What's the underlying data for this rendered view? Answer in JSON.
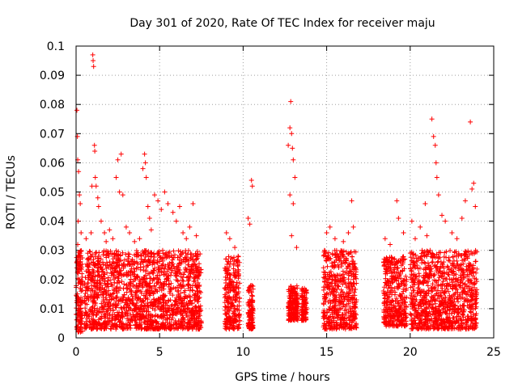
{
  "chart_data": {
    "type": "scatter",
    "title": "Day 301 of 2020, Rate Of TEC Index for receiver maju",
    "xlabel": "GPS time / hours",
    "ylabel": "ROTI / TECUs",
    "xlim": [
      0,
      25
    ],
    "ylim": [
      0,
      0.1
    ],
    "xticks": [
      0,
      5,
      10,
      15,
      20,
      25
    ],
    "xtick_labels": [
      "0",
      "5",
      "10",
      "15",
      "20",
      "25"
    ],
    "yticks": [
      0,
      0.01,
      0.02,
      0.03,
      0.04,
      0.05,
      0.06,
      0.07,
      0.08,
      0.09,
      0.1
    ],
    "ytick_labels": [
      "0",
      "0.01",
      "0.02",
      "0.03",
      "0.04",
      "0.05",
      "0.06",
      "0.07",
      "0.08",
      "0.09",
      "0.1"
    ],
    "grid": true,
    "marker": "+",
    "color": "#ff0000",
    "series": [
      {
        "name": "ROTI",
        "points": [
          [
            0.05,
            0.078
          ],
          [
            0.08,
            0.069
          ],
          [
            0.1,
            0.061
          ],
          [
            0.15,
            0.057
          ],
          [
            0.2,
            0.049
          ],
          [
            0.25,
            0.046
          ],
          [
            0.12,
            0.04
          ],
          [
            0.3,
            0.036
          ],
          [
            0.1,
            0.032
          ],
          [
            0.2,
            0.028
          ],
          [
            0.05,
            0.024
          ],
          [
            0.18,
            0.02
          ],
          [
            0.3,
            0.016
          ],
          [
            0.1,
            0.012
          ],
          [
            0.22,
            0.008
          ],
          [
            0.15,
            0.005
          ],
          [
            0.05,
            0.003
          ],
          [
            0.35,
            0.022
          ],
          [
            0.4,
            0.018
          ],
          [
            0.28,
            0.013
          ],
          [
            0.6,
            0.034
          ],
          [
            0.7,
            0.029
          ],
          [
            0.8,
            0.025
          ],
          [
            0.9,
            0.036
          ],
          [
            0.95,
            0.052
          ],
          [
            1.0,
            0.097
          ],
          [
            1.02,
            0.095
          ],
          [
            1.05,
            0.093
          ],
          [
            1.1,
            0.066
          ],
          [
            1.12,
            0.064
          ],
          [
            1.15,
            0.055
          ],
          [
            1.2,
            0.052
          ],
          [
            1.3,
            0.048
          ],
          [
            1.35,
            0.045
          ],
          [
            1.5,
            0.04
          ],
          [
            1.7,
            0.036
          ],
          [
            1.8,
            0.033
          ],
          [
            2.0,
            0.037
          ],
          [
            2.2,
            0.034
          ],
          [
            2.4,
            0.055
          ],
          [
            2.5,
            0.061
          ],
          [
            2.6,
            0.05
          ],
          [
            2.7,
            0.063
          ],
          [
            2.8,
            0.049
          ],
          [
            3.0,
            0.038
          ],
          [
            3.2,
            0.036
          ],
          [
            3.5,
            0.033
          ],
          [
            3.8,
            0.034
          ],
          [
            4.0,
            0.058
          ],
          [
            4.1,
            0.063
          ],
          [
            4.15,
            0.06
          ],
          [
            4.2,
            0.055
          ],
          [
            4.3,
            0.045
          ],
          [
            4.4,
            0.041
          ],
          [
            4.5,
            0.037
          ],
          [
            4.7,
            0.049
          ],
          [
            4.9,
            0.047
          ],
          [
            5.1,
            0.044
          ],
          [
            5.3,
            0.05
          ],
          [
            5.5,
            0.046
          ],
          [
            5.8,
            0.043
          ],
          [
            6.0,
            0.04
          ],
          [
            6.2,
            0.045
          ],
          [
            6.4,
            0.036
          ],
          [
            6.6,
            0.034
          ],
          [
            6.8,
            0.038
          ],
          [
            7.0,
            0.046
          ],
          [
            7.2,
            0.035
          ],
          [
            9.0,
            0.036
          ],
          [
            9.2,
            0.034
          ],
          [
            9.5,
            0.031
          ],
          [
            9.7,
            0.028
          ],
          [
            10.3,
            0.041
          ],
          [
            10.4,
            0.039
          ],
          [
            10.5,
            0.054
          ],
          [
            10.55,
            0.052
          ],
          [
            12.7,
            0.066
          ],
          [
            12.8,
            0.072
          ],
          [
            12.85,
            0.081
          ],
          [
            12.9,
            0.07
          ],
          [
            12.95,
            0.065
          ],
          [
            13.0,
            0.061
          ],
          [
            13.1,
            0.055
          ],
          [
            12.8,
            0.049
          ],
          [
            13.0,
            0.046
          ],
          [
            12.9,
            0.035
          ],
          [
            13.2,
            0.031
          ],
          [
            15.0,
            0.036
          ],
          [
            15.2,
            0.038
          ],
          [
            15.5,
            0.034
          ],
          [
            16.0,
            0.033
          ],
          [
            16.3,
            0.036
          ],
          [
            16.5,
            0.047
          ],
          [
            16.6,
            0.038
          ],
          [
            18.5,
            0.034
          ],
          [
            18.8,
            0.032
          ],
          [
            19.2,
            0.047
          ],
          [
            19.3,
            0.041
          ],
          [
            19.6,
            0.036
          ],
          [
            20.1,
            0.04
          ],
          [
            20.3,
            0.034
          ],
          [
            20.6,
            0.038
          ],
          [
            20.9,
            0.046
          ],
          [
            21.0,
            0.035
          ],
          [
            21.3,
            0.075
          ],
          [
            21.4,
            0.069
          ],
          [
            21.5,
            0.066
          ],
          [
            21.55,
            0.06
          ],
          [
            21.6,
            0.055
          ],
          [
            21.7,
            0.049
          ],
          [
            21.9,
            0.042
          ],
          [
            22.1,
            0.04
          ],
          [
            22.5,
            0.036
          ],
          [
            22.8,
            0.034
          ],
          [
            23.1,
            0.041
          ],
          [
            23.3,
            0.047
          ],
          [
            23.6,
            0.074
          ],
          [
            23.7,
            0.051
          ],
          [
            23.8,
            0.053
          ],
          [
            23.9,
            0.045
          ]
        ],
        "bands": [
          {
            "x_range": [
              0.0,
              0.4
            ],
            "y_range": [
              0.002,
              0.03
            ]
          },
          {
            "x_range": [
              0.5,
              7.5
            ],
            "y_range": [
              0.003,
              0.03
            ]
          },
          {
            "x_range": [
              8.9,
              9.8
            ],
            "y_range": [
              0.003,
              0.028
            ]
          },
          {
            "x_range": [
              10.3,
              10.6
            ],
            "y_range": [
              0.003,
              0.018
            ]
          },
          {
            "x_range": [
              12.7,
              13.3
            ],
            "y_range": [
              0.006,
              0.018
            ]
          },
          {
            "x_range": [
              13.5,
              13.8
            ],
            "y_range": [
              0.006,
              0.017
            ]
          },
          {
            "x_range": [
              14.8,
              16.8
            ],
            "y_range": [
              0.003,
              0.03
            ]
          },
          {
            "x_range": [
              18.4,
              19.8
            ],
            "y_range": [
              0.004,
              0.028
            ]
          },
          {
            "x_range": [
              20.0,
              24.0
            ],
            "y_range": [
              0.003,
              0.03
            ]
          }
        ]
      }
    ]
  }
}
